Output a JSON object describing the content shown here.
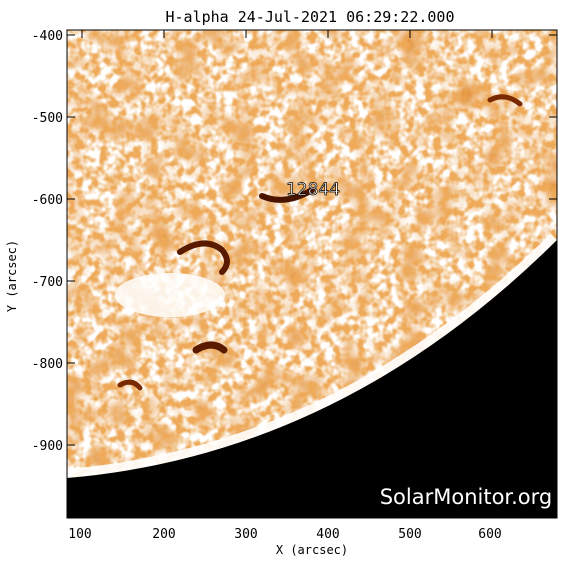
{
  "title": "H-alpha 24-Jul-2021 06:29:22.000",
  "x_axis": {
    "label": "X (arcsec)",
    "ticks": [
      "100",
      "200",
      "300",
      "400",
      "500",
      "600"
    ],
    "range": [
      90,
      690
    ]
  },
  "y_axis": {
    "label": "Y (arcsec)",
    "ticks": [
      "-400",
      "-500",
      "-600",
      "-700",
      "-800",
      "-900"
    ],
    "range": [
      -990,
      -395
    ]
  },
  "region_label": "12844",
  "watermark": "SolarMonitor.org",
  "colors": {
    "disk_background": "#ffffff",
    "chromosphere": "#d9661a",
    "dark_feature": "#4a1500",
    "space": "#000000"
  }
}
